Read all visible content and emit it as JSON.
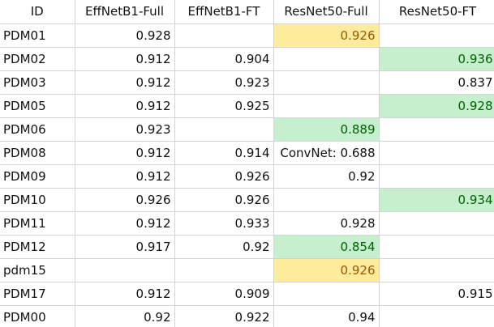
{
  "columns": [
    "ID",
    "EffNetB1-Full",
    "EffNetB1-FT",
    "ResNet50-Full",
    "ResNet50-FT"
  ],
  "colors": {
    "highlight_yellow_fill": "#ffeb9c",
    "highlight_yellow_text": "#9c5700",
    "highlight_green_fill": "#c6efce",
    "highlight_green_text": "#006100",
    "gridline": "#d4d4d4"
  },
  "rows": [
    {
      "id": "PDM01",
      "cells": [
        {
          "v": "0.928"
        },
        {
          "v": ""
        },
        {
          "v": "0.926",
          "hl": "yellow"
        },
        {
          "v": ""
        }
      ]
    },
    {
      "id": "PDM02",
      "cells": [
        {
          "v": "0.912"
        },
        {
          "v": "0.904"
        },
        {
          "v": ""
        },
        {
          "v": "0.936",
          "hl": "green"
        }
      ]
    },
    {
      "id": "PDM03",
      "cells": [
        {
          "v": "0.912"
        },
        {
          "v": "0.923"
        },
        {
          "v": ""
        },
        {
          "v": "0.837"
        }
      ]
    },
    {
      "id": "PDM05",
      "cells": [
        {
          "v": "0.912"
        },
        {
          "v": "0.925"
        },
        {
          "v": ""
        },
        {
          "v": "0.928",
          "hl": "green"
        }
      ]
    },
    {
      "id": "PDM06",
      "cells": [
        {
          "v": "0.923"
        },
        {
          "v": ""
        },
        {
          "v": "0.889",
          "hl": "green"
        },
        {
          "v": ""
        }
      ]
    },
    {
      "id": "PDM08",
      "cells": [
        {
          "v": "0.912"
        },
        {
          "v": "0.914"
        },
        {
          "v": "ConvNet: 0.688"
        },
        {
          "v": ""
        }
      ]
    },
    {
      "id": "PDM09",
      "cells": [
        {
          "v": "0.912"
        },
        {
          "v": "0.926"
        },
        {
          "v": "0.92"
        },
        {
          "v": ""
        }
      ]
    },
    {
      "id": "PDM10",
      "cells": [
        {
          "v": "0.926"
        },
        {
          "v": "0.926"
        },
        {
          "v": ""
        },
        {
          "v": "0.934",
          "hl": "green"
        }
      ]
    },
    {
      "id": "PDM11",
      "cells": [
        {
          "v": "0.912"
        },
        {
          "v": "0.933"
        },
        {
          "v": "0.928"
        },
        {
          "v": ""
        }
      ]
    },
    {
      "id": "PDM12",
      "cells": [
        {
          "v": "0.917"
        },
        {
          "v": "0.92"
        },
        {
          "v": "0.854",
          "hl": "green"
        },
        {
          "v": ""
        }
      ]
    },
    {
      "id": "pdm15",
      "cells": [
        {
          "v": ""
        },
        {
          "v": ""
        },
        {
          "v": "0.926",
          "hl": "yellow"
        },
        {
          "v": ""
        }
      ]
    },
    {
      "id": "PDM17",
      "cells": [
        {
          "v": "0.912"
        },
        {
          "v": "0.909"
        },
        {
          "v": ""
        },
        {
          "v": "0.915"
        }
      ]
    },
    {
      "id": "PDM00",
      "cells": [
        {
          "v": "0.92"
        },
        {
          "v": "0.922"
        },
        {
          "v": "0.94"
        },
        {
          "v": ""
        }
      ]
    }
  ]
}
